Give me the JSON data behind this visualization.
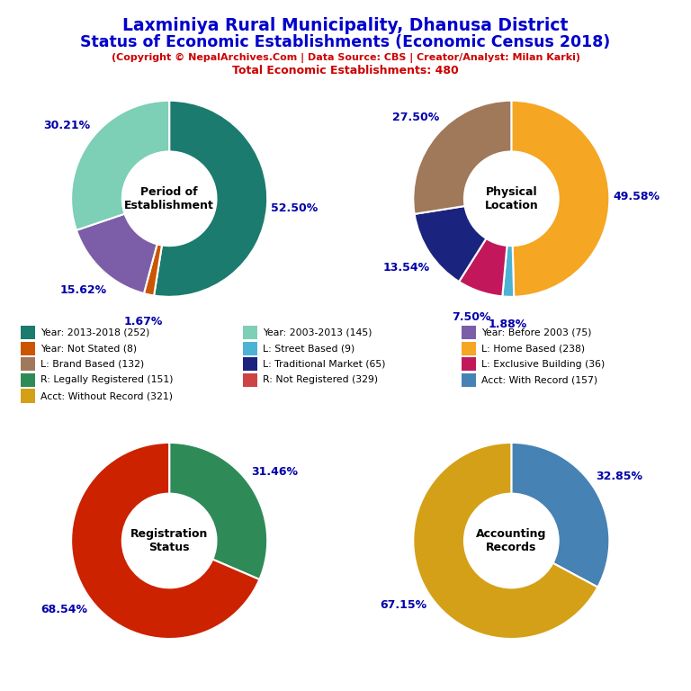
{
  "title_line1": "Laxminiya Rural Municipality, Dhanusa District",
  "title_line2": "Status of Economic Establishments (Economic Census 2018)",
  "subtitle1": "(Copyright © NepalArchives.Com | Data Source: CBS | Creator/Analyst: Milan Karki)",
  "subtitle2": "Total Economic Establishments: 480",
  "title_color": "#0000CC",
  "subtitle_color": "#CC0000",
  "pie1_title": "Period of\nEstablishment",
  "pie1_values": [
    52.5,
    1.67,
    15.62,
    30.21
  ],
  "pie1_colors": [
    "#1B7B6E",
    "#CC5500",
    "#7B5EA7",
    "#7DCFB6"
  ],
  "pie1_labels": [
    "52.50%",
    "1.67%",
    "15.62%",
    "30.21%"
  ],
  "pie2_title": "Physical\nLocation",
  "pie2_values": [
    49.58,
    1.88,
    7.5,
    13.54,
    27.5
  ],
  "pie2_colors": [
    "#F5A623",
    "#4DB3D4",
    "#C2185B",
    "#1A237E",
    "#A0785A"
  ],
  "pie2_labels": [
    "49.58%",
    "1.88%",
    "7.50%",
    "13.54%",
    "27.50%"
  ],
  "pie3_title": "Registration\nStatus",
  "pie3_values": [
    31.46,
    68.54
  ],
  "pie3_colors": [
    "#2E8B57",
    "#CC2200"
  ],
  "pie3_labels": [
    "31.46%",
    "68.54%"
  ],
  "pie4_title": "Accounting\nRecords",
  "pie4_values": [
    32.85,
    67.15
  ],
  "pie4_colors": [
    "#4682B4",
    "#D4A017"
  ],
  "pie4_labels": [
    "32.85%",
    "67.15%"
  ],
  "col1_items": [
    {
      "label": "Year: 2013-2018 (252)",
      "color": "#1B7B6E"
    },
    {
      "label": "Year: Not Stated (8)",
      "color": "#CC5500"
    },
    {
      "label": "L: Brand Based (132)",
      "color": "#A0785A"
    },
    {
      "label": "R: Legally Registered (151)",
      "color": "#2E8B57"
    },
    {
      "label": "Acct: Without Record (321)",
      "color": "#D4A017"
    }
  ],
  "col2_items": [
    {
      "label": "Year: 2003-2013 (145)",
      "color": "#7DCFB6"
    },
    {
      "label": "L: Street Based (9)",
      "color": "#4DB3D4"
    },
    {
      "label": "L: Traditional Market (65)",
      "color": "#1A237E"
    },
    {
      "label": "R: Not Registered (329)",
      "color": "#CC4444"
    },
    {
      "label": "",
      "color": null
    }
  ],
  "col3_items": [
    {
      "label": "Year: Before 2003 (75)",
      "color": "#7B5EA7"
    },
    {
      "label": "L: Home Based (238)",
      "color": "#F5A623"
    },
    {
      "label": "L: Exclusive Building (36)",
      "color": "#C2185B"
    },
    {
      "label": "Acct: With Record (157)",
      "color": "#4682B4"
    },
    {
      "label": "",
      "color": null
    }
  ],
  "label_color": "#0000AA",
  "label_fontsize": 9
}
